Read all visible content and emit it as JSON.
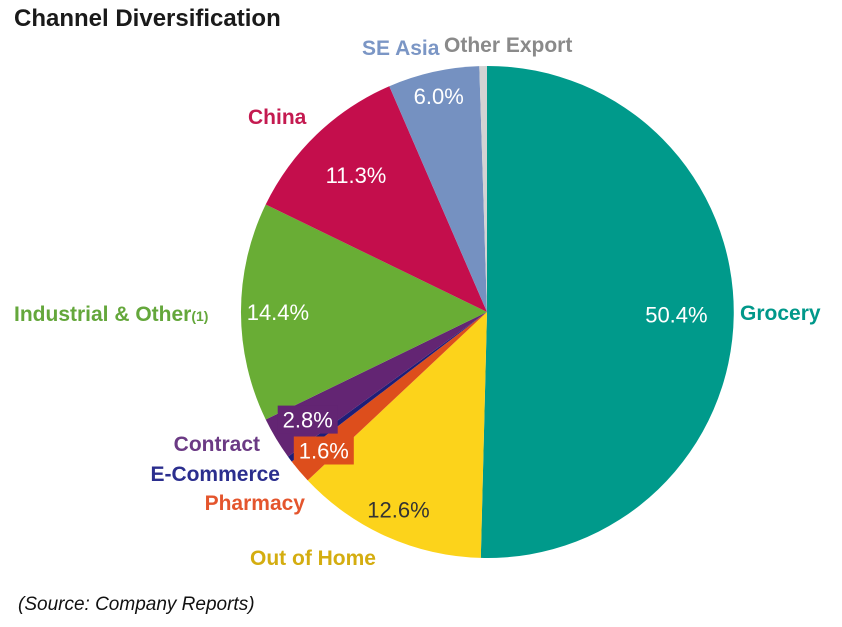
{
  "title": "Channel Diversification",
  "source_note": "(Source: Company Reports)",
  "chart_data": {
    "type": "pie",
    "title": "Channel Diversification",
    "direction": "clockwise",
    "start_angle_deg": 0,
    "total_percent": 100,
    "slices": [
      {
        "id": "grocery",
        "label": "Grocery",
        "value": 50.4,
        "pct_label": "50.4%",
        "color": "#009a8b",
        "label_color": "#00988a",
        "pct_color": "#ffffff",
        "label_r": 0.77
      },
      {
        "id": "out-of-home",
        "label": "Out of Home",
        "value": 12.6,
        "pct_label": "12.6%",
        "color": "#fcd31b",
        "label_color": "#d4ad10",
        "pct_color": "#333333",
        "label_r": 0.88
      },
      {
        "id": "pharmacy",
        "label": "Pharmacy",
        "value": 1.6,
        "pct_label": "1.6%",
        "color": "#dd4e1c",
        "label_color": "#e4552d",
        "pct_color": "#ffffff",
        "label_r": 0.87,
        "boxed": true
      },
      {
        "id": "e-commerce",
        "label": "E-Commerce",
        "value": 0.4,
        "value_estimated": true,
        "pct_label": "",
        "color": "#1f1e78",
        "label_color": "#2b2e8e"
      },
      {
        "id": "contract",
        "label": "Contract",
        "value": 2.8,
        "pct_label": "2.8%",
        "color": "#632573",
        "label_color": "#6b3a84",
        "pct_color": "#ffffff",
        "label_r": 0.85,
        "boxed": true
      },
      {
        "id": "industrial-other",
        "label": "Industrial & Other",
        "label_note": "(1)",
        "value": 14.4,
        "pct_label": "14.4%",
        "color": "#69ad35",
        "label_color": "#64a73b",
        "pct_color": "#ffffff",
        "label_r": 0.85
      },
      {
        "id": "china",
        "label": "China",
        "value": 11.3,
        "pct_label": "11.3%",
        "color": "#c40e4c",
        "label_color": "#c41a50",
        "pct_color": "#ffffff",
        "label_r": 0.77
      },
      {
        "id": "se-asia",
        "label": "SE Asia",
        "value": 6.0,
        "pct_label": "6.0%",
        "color": "#7591c1",
        "label_color": "#7b96c5",
        "pct_color": "#ffffff",
        "label_r": 0.9
      },
      {
        "id": "other-export",
        "label": "Other Export",
        "value": 0.5,
        "value_estimated": true,
        "pct_label": "",
        "color": "#d3d3d3",
        "label_color": "#8a8a8a"
      }
    ]
  }
}
